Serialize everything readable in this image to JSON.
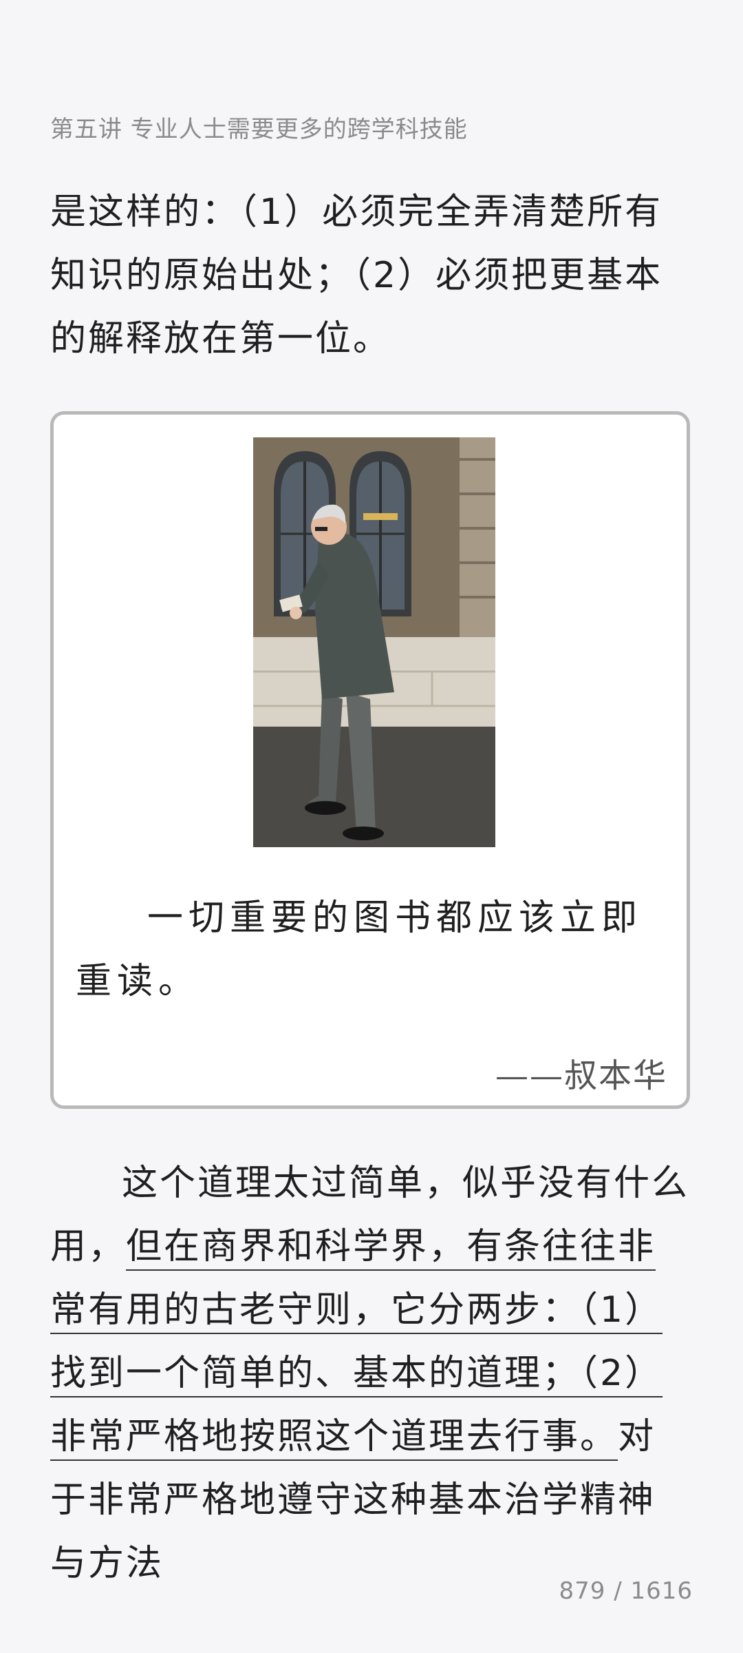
{
  "header": {
    "chapter_title": "第五讲 专业人士需要更多的跨学科技能"
  },
  "content": {
    "top_paragraph": "是这样的：（1）必须完全弄清楚所有知识的原始出处；（2）必须把更基本的解释放在第一位。",
    "quote": {
      "image_alt": "photo-of-man-reading-book",
      "text": "一切重要的图书都应该立即重读。",
      "author": "——叔本华"
    },
    "bottom_paragraph": {
      "before": "这个道理太过简单，似乎没有什么用，",
      "underlined": "但在商界和科学界，有条往往非常有用的古老守则，它分两步：（1）找到一个简单的、基本的道理；（2）非常严格地按照这个道理去行事。",
      "after": "对于非常严格地遵守这种基本治学精神与方法"
    }
  },
  "footer": {
    "page_indicator": "879 / 1616"
  }
}
